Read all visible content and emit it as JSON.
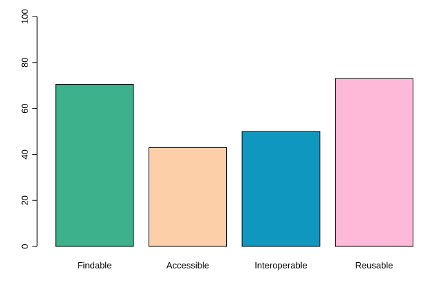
{
  "chart_data": {
    "type": "bar",
    "categories": [
      "Findable",
      "Accessible",
      "Interoperable",
      "Reusable"
    ],
    "values": [
      70.5,
      43,
      50,
      73
    ],
    "colors": [
      "#3db08c",
      "#fdcfa8",
      "#0f97bf",
      "#fdb9d7"
    ],
    "ylim": [
      0,
      100
    ],
    "yticks": [
      0,
      20,
      40,
      60,
      80,
      100
    ],
    "title": "",
    "xlabel": "",
    "ylabel": "",
    "grid": false,
    "bar_border_color": "#000000"
  }
}
